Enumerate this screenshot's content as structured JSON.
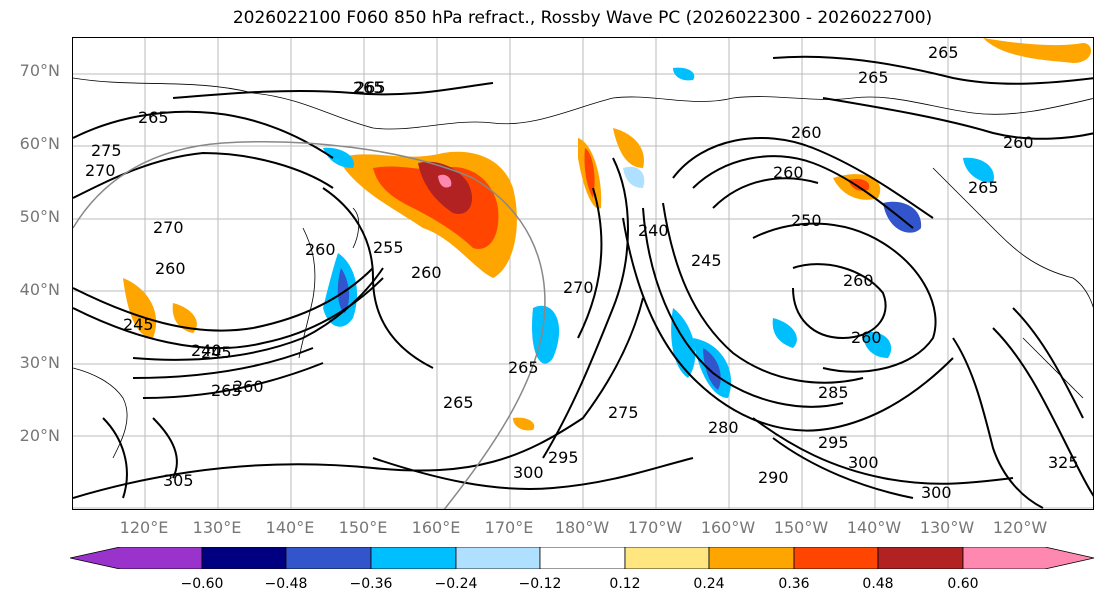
{
  "title": "2026022100 F060 850 hPa refract., Rossby Wave PC (2026022300 - 2026022700)",
  "lat_labels": [
    "70°N",
    "60°N",
    "50°N",
    "40°N",
    "30°N",
    "20°N"
  ],
  "lon_labels": [
    "120°E",
    "130°E",
    "140°E",
    "150°E",
    "160°E",
    "170°E",
    "180°W",
    "170°W",
    "160°W",
    "150°W",
    "140°W",
    "130°W",
    "120°W"
  ],
  "colorbar": {
    "ticks": [
      "−0.60",
      "−0.48",
      "−0.36",
      "−0.24",
      "−0.12",
      "0.12",
      "0.24",
      "0.36",
      "0.48",
      "0.60"
    ],
    "colors": [
      "#9933cc",
      "#000080",
      "#3355cc",
      "#00bfff",
      "#b0e0ff",
      "#ffffff",
      "#ffe680",
      "#ffa500",
      "#ff4500",
      "#b22222",
      "#ff88b0"
    ]
  },
  "contour_labels": [
    "265",
    "265",
    "265",
    "265",
    "270",
    "275",
    "270",
    "260",
    "255",
    "260",
    "260",
    "240",
    "245",
    "250",
    "260",
    "260",
    "260",
    "265",
    "265",
    "265",
    "270",
    "275",
    "280",
    "285",
    "290",
    "295",
    "300",
    "295",
    "300",
    "305",
    "245",
    "240",
    "265",
    "260",
    "265",
    "260",
    "245",
    "260",
    "300",
    "325"
  ]
}
